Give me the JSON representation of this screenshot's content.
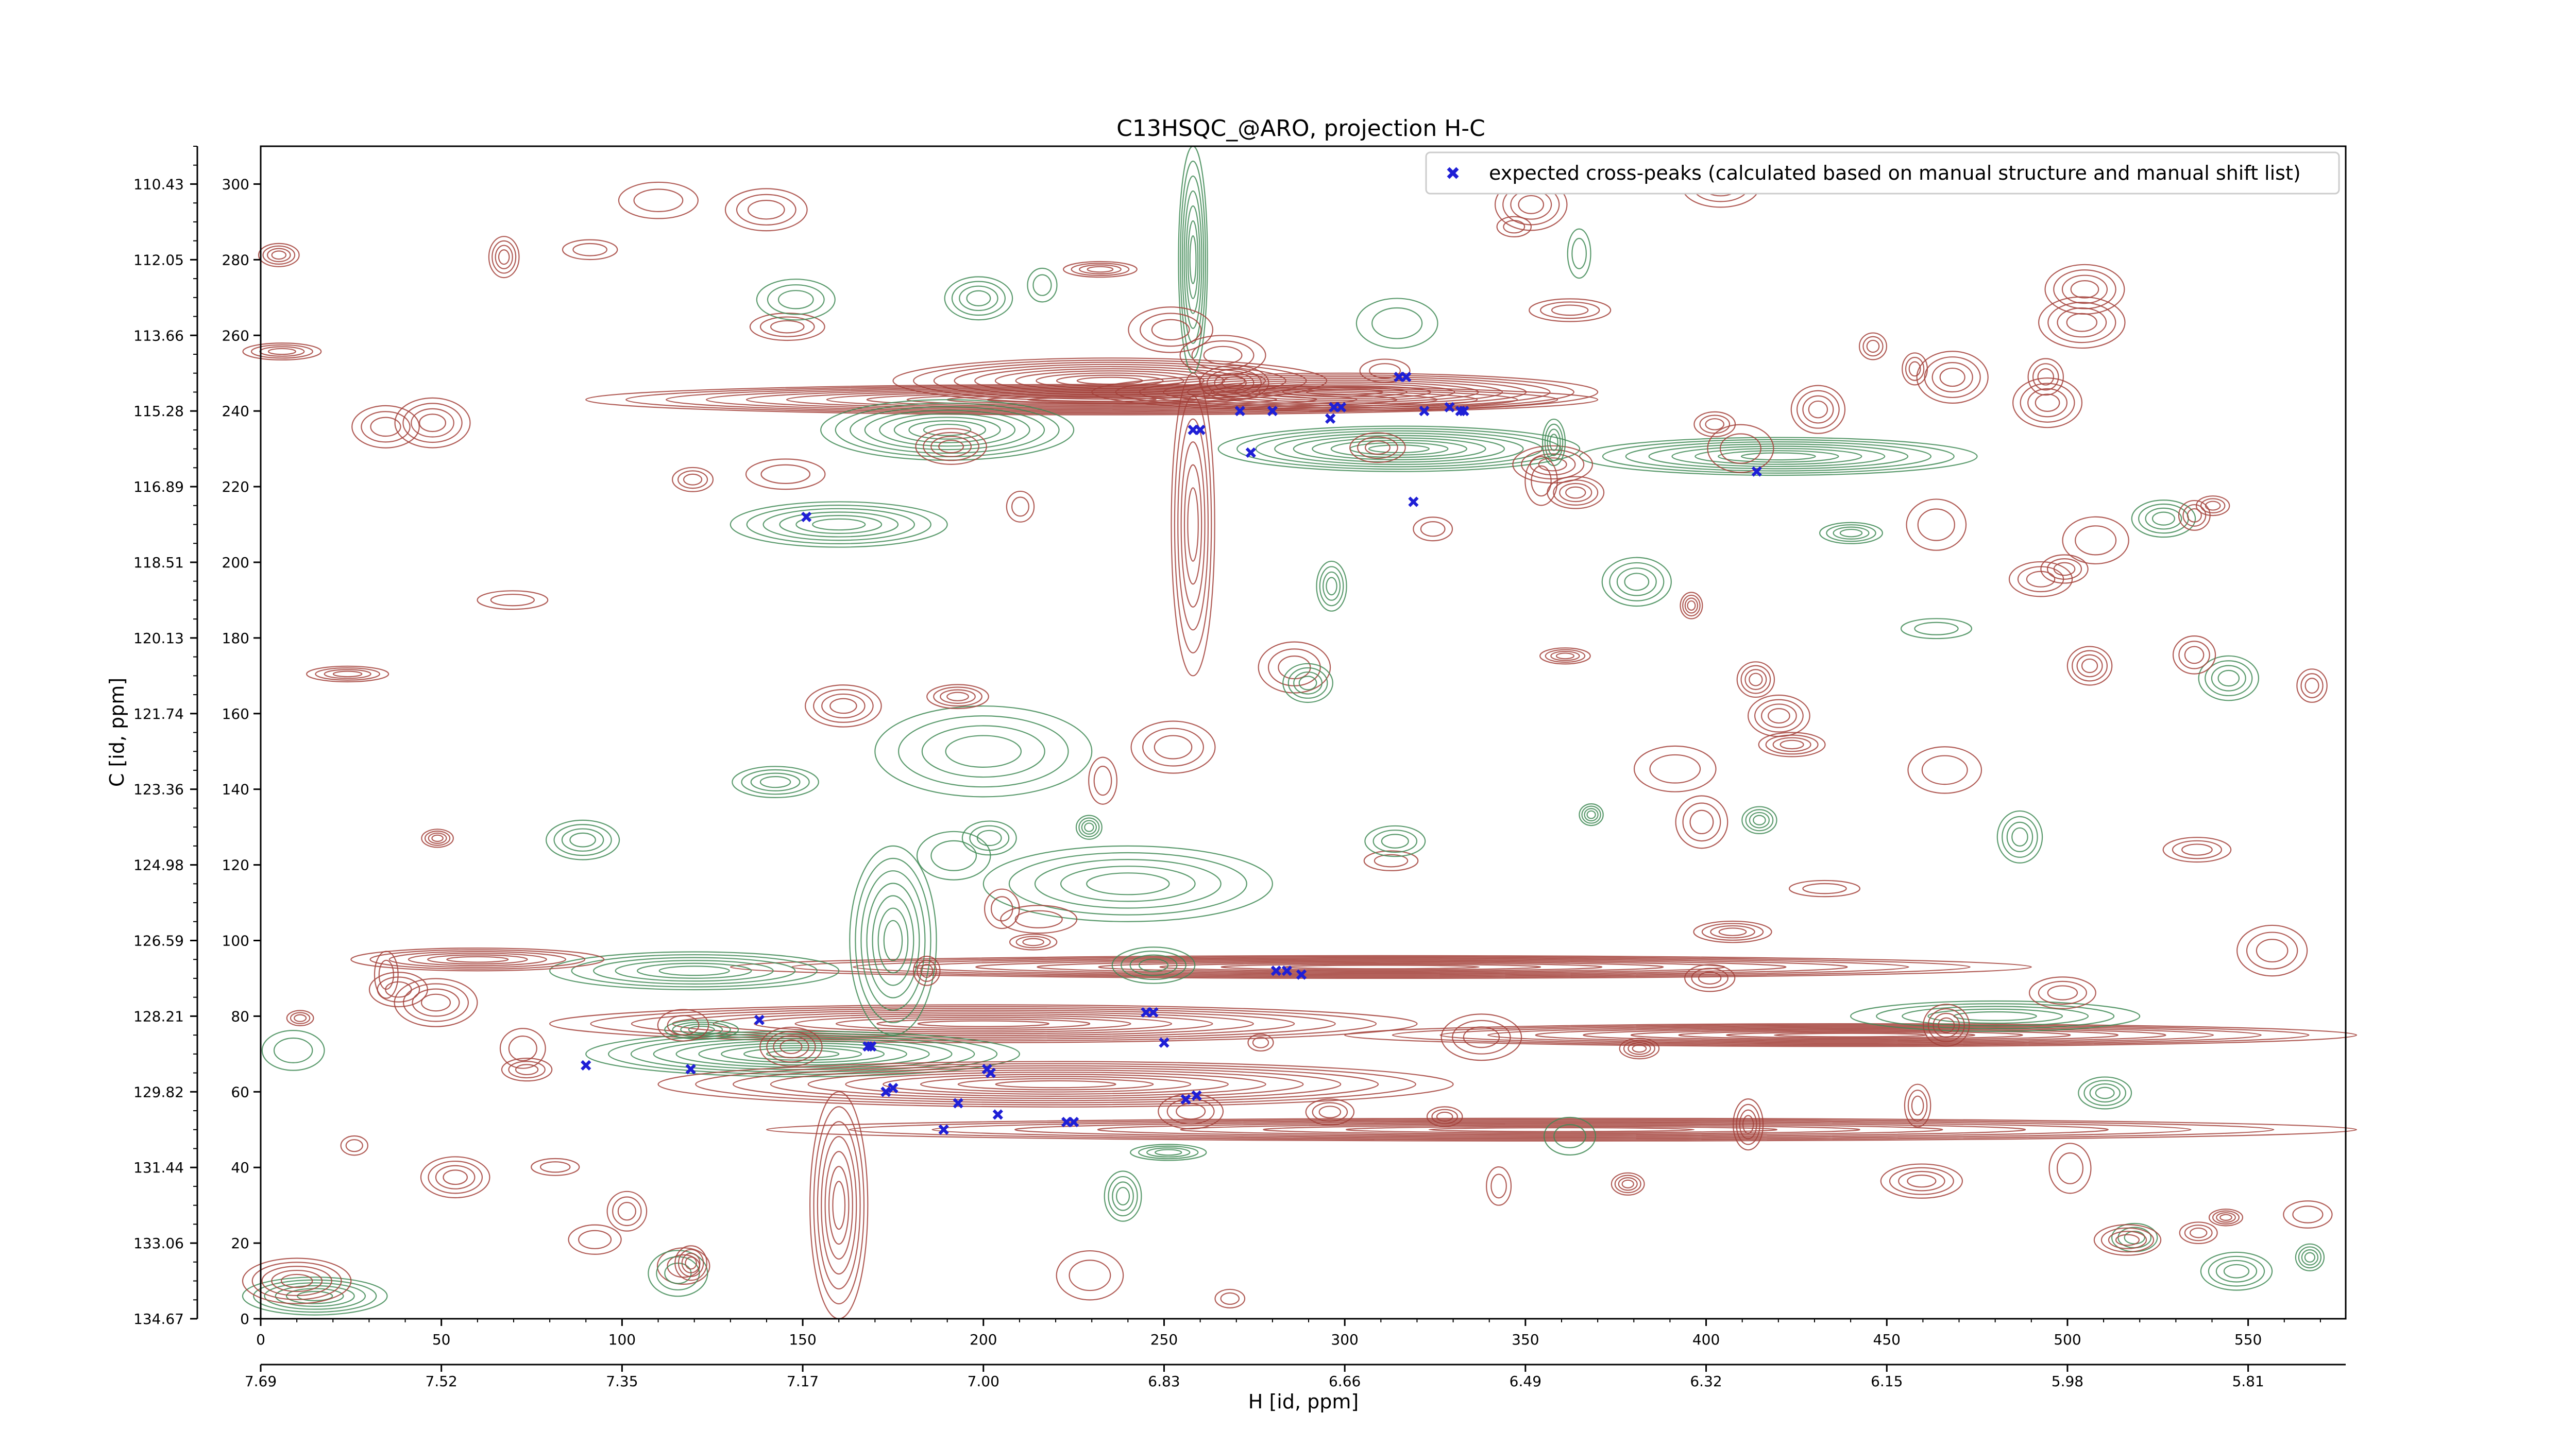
{
  "chart_data": {
    "type": "scatter",
    "subtype": "2D NMR contour plot with peak overlay",
    "title": "C13HSQC_@ARO, projection H-C",
    "xlabel": "H [id, ppm]",
    "ylabel": "C [id, ppm]",
    "x_index_range": [
      0,
      577
    ],
    "y_index_range": [
      0,
      310
    ],
    "x_index_ticks": [
      0,
      50,
      100,
      150,
      200,
      250,
      300,
      350,
      400,
      450,
      500,
      550
    ],
    "y_index_ticks": [
      0,
      20,
      40,
      60,
      80,
      100,
      120,
      140,
      160,
      180,
      200,
      220,
      240,
      260,
      280,
      300
    ],
    "x_ppm_ticks": [
      "7.69",
      "7.52",
      "7.35",
      "7.17",
      "7.00",
      "6.83",
      "6.66",
      "6.49",
      "6.32",
      "6.15",
      "5.98",
      "5.81"
    ],
    "y_ppm_ticks": [
      "134.67",
      "133.06",
      "131.44",
      "129.82",
      "128.21",
      "126.59",
      "124.98",
      "123.36",
      "121.74",
      "120.13",
      "118.51",
      "116.89",
      "115.28",
      "113.66",
      "112.05",
      "110.43"
    ],
    "grid": false,
    "legend_position": "top-right",
    "colors": {
      "positive_contours": "#a3413a",
      "negative_contours": "#3f8a55",
      "peaks": "#1f1fd6"
    },
    "series": [
      {
        "name": "expected cross-peaks (calculated based on manual structure and manual shift list)",
        "marker": "x",
        "points": [
          [
            151,
            212
          ],
          [
            258,
            235
          ],
          [
            260,
            235
          ],
          [
            271,
            240
          ],
          [
            274,
            229
          ],
          [
            280,
            240
          ],
          [
            296,
            238
          ],
          [
            297,
            241
          ],
          [
            299,
            241
          ],
          [
            315,
            249
          ],
          [
            317,
            249
          ],
          [
            319,
            216
          ],
          [
            322,
            240
          ],
          [
            329,
            241
          ],
          [
            332,
            240
          ],
          [
            333,
            240
          ],
          [
            414,
            224
          ],
          [
            90,
            67
          ],
          [
            119,
            66
          ],
          [
            138,
            79
          ],
          [
            168,
            72
          ],
          [
            169,
            72
          ],
          [
            173,
            60
          ],
          [
            175,
            61
          ],
          [
            189,
            50
          ],
          [
            193,
            57
          ],
          [
            201,
            66
          ],
          [
            202,
            65
          ],
          [
            204,
            54
          ],
          [
            223,
            52
          ],
          [
            225,
            52
          ],
          [
            245,
            81
          ],
          [
            247,
            81
          ],
          [
            250,
            73
          ],
          [
            256,
            58
          ],
          [
            259,
            59
          ],
          [
            281,
            92
          ],
          [
            284,
            92
          ],
          [
            288,
            91
          ]
        ]
      }
    ]
  }
}
